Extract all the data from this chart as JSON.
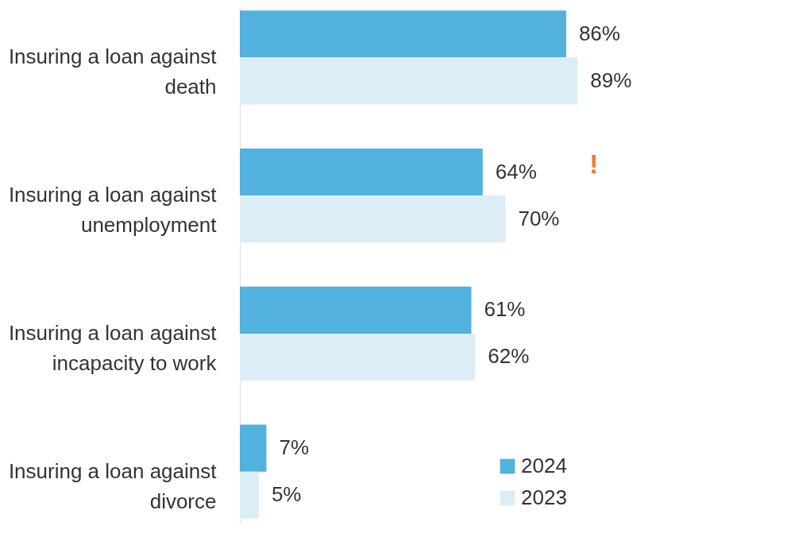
{
  "chart_data": {
    "type": "bar",
    "orientation": "horizontal",
    "categories": [
      "Insuring a loan against death",
      "Insuring a loan against unemployment",
      "Insuring a loan against incapacity to work",
      "Insuring a loan against divorce"
    ],
    "series": [
      {
        "name": "2024",
        "color": "#53b1dd",
        "values": [
          86,
          64,
          61,
          7
        ],
        "value_labels": [
          "86%",
          "64%",
          "61%",
          "7%"
        ]
      },
      {
        "name": "2023",
        "color": "#dcedf7",
        "values": [
          89,
          70,
          62,
          5
        ],
        "value_labels": [
          "89%",
          "70%",
          "62%",
          "5%"
        ]
      }
    ],
    "legend": "bottom right",
    "grid": false,
    "annotations": [
      "!"
    ]
  }
}
